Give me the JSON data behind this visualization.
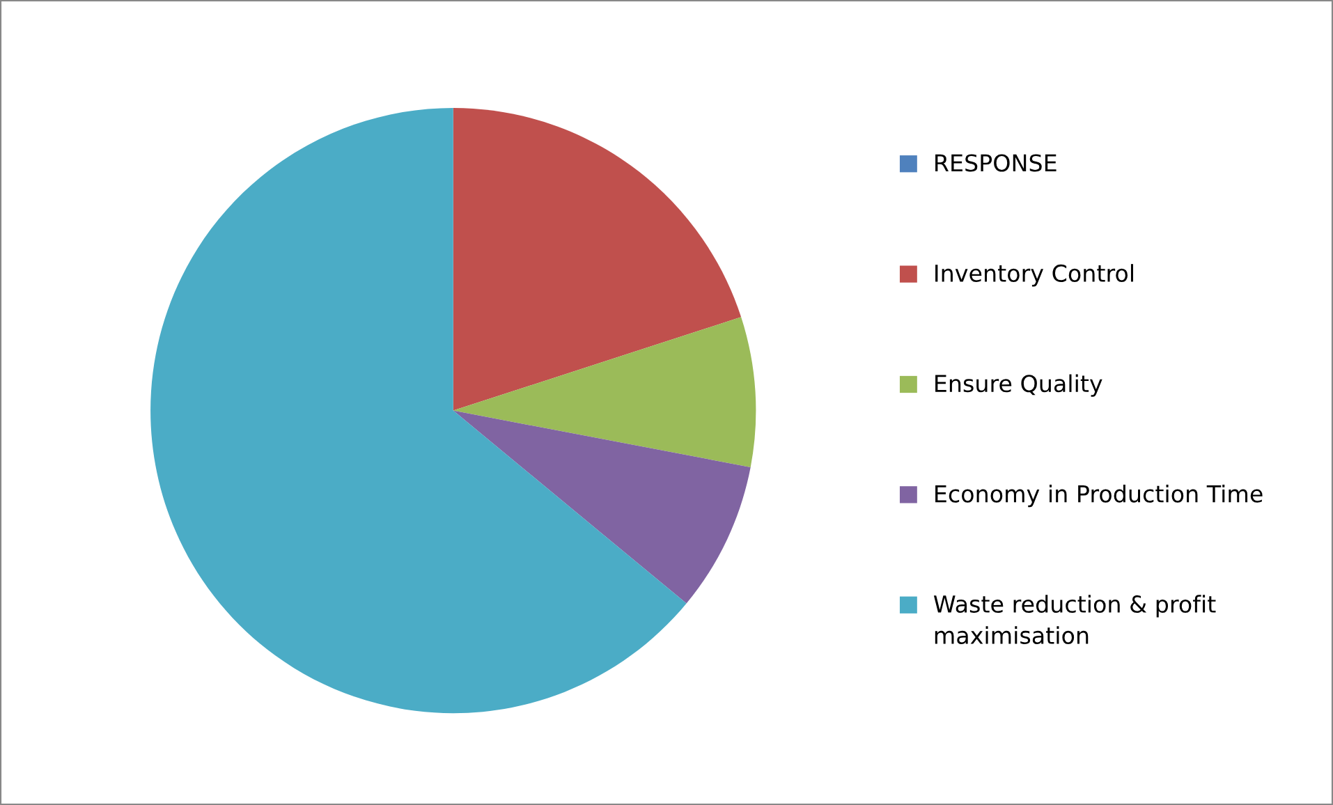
{
  "chart_data": {
    "type": "pie",
    "categories": [
      "RESPONSE",
      "Inventory Control",
      "Ensure Quality",
      "Economy in Production Time",
      "Waste reduction & profit maximisation"
    ],
    "values": [
      0,
      20,
      8,
      8,
      64
    ],
    "colors": [
      "#4f81bd",
      "#c0504d",
      "#9bbb59",
      "#8064a2",
      "#4bacc6"
    ],
    "legend": "right"
  }
}
